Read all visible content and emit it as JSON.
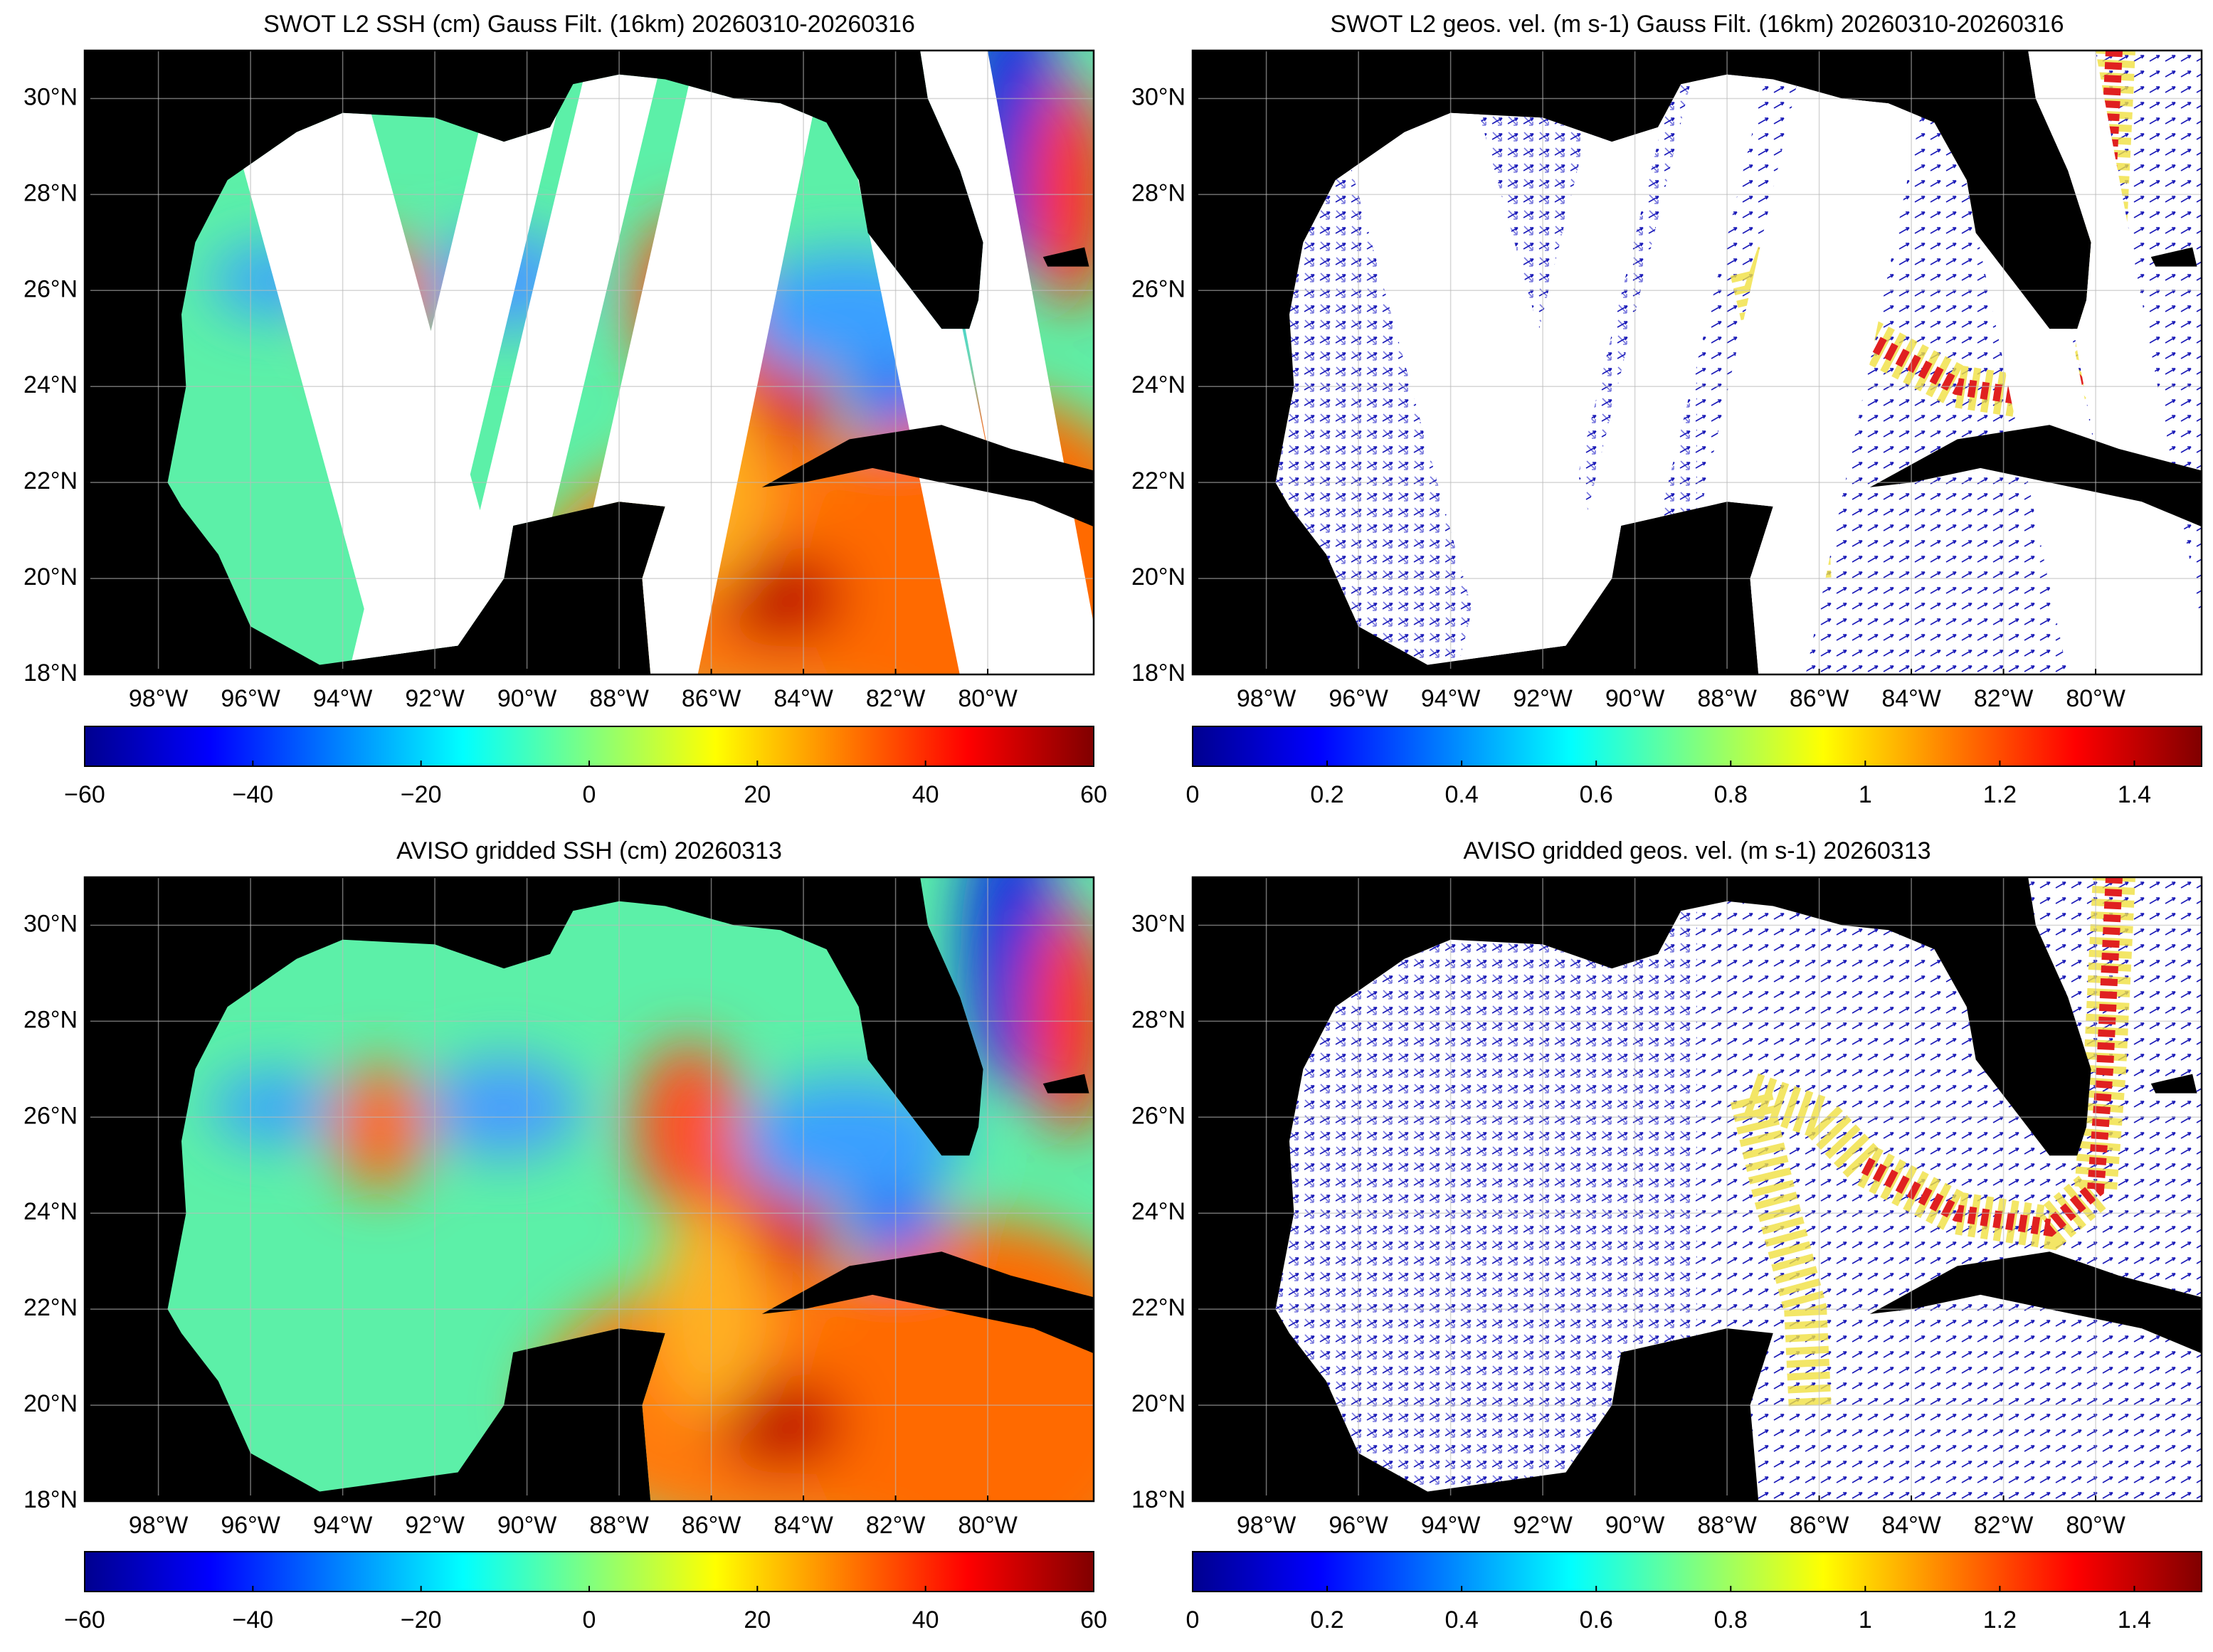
{
  "map_axes": {
    "xlim": [
      -99.6,
      -77.7
    ],
    "ylim": [
      18,
      31
    ],
    "xticks": [
      {
        "value": -98,
        "label": "98°W"
      },
      {
        "value": -96,
        "label": "96°W"
      },
      {
        "value": -94,
        "label": "94°W"
      },
      {
        "value": -92,
        "label": "92°W"
      },
      {
        "value": -90,
        "label": "90°W"
      },
      {
        "value": -88,
        "label": "88°W"
      },
      {
        "value": -86,
        "label": "86°W"
      },
      {
        "value": -84,
        "label": "84°W"
      },
      {
        "value": -82,
        "label": "82°W"
      },
      {
        "value": -80,
        "label": "80°W"
      }
    ],
    "yticks": [
      {
        "value": 18,
        "label": "18°N"
      },
      {
        "value": 20,
        "label": "20°N"
      },
      {
        "value": 22,
        "label": "22°N"
      },
      {
        "value": 24,
        "label": "24°N"
      },
      {
        "value": 26,
        "label": "26°N"
      },
      {
        "value": 28,
        "label": "28°N"
      },
      {
        "value": 30,
        "label": "30°N"
      }
    ]
  },
  "panels": [
    {
      "title": "SWOT L2 SSH (cm) Gauss Filt. (16km) 20260310-20260316",
      "colorbar": {
        "lim": [
          -60,
          60
        ],
        "ticks": [
          {
            "value": -60,
            "label": "−60"
          },
          {
            "value": -40,
            "label": "−40"
          },
          {
            "value": -20,
            "label": "−20"
          },
          0,
          20,
          40,
          60
        ]
      }
    },
    {
      "title": "SWOT L2 geos. vel. (m s-1) Gauss Filt. (16km) 20260310-20260316",
      "colorbar": {
        "lim": [
          0,
          1.5
        ],
        "ticks": [
          0,
          0.2,
          0.4,
          0.6,
          0.8,
          1,
          1.2,
          1.4
        ]
      }
    },
    {
      "title": "AVISO gridded SSH (cm) 20260313",
      "colorbar": {
        "lim": [
          -60,
          60
        ],
        "ticks": [
          {
            "value": -60,
            "label": "−60"
          },
          {
            "value": -40,
            "label": "−40"
          },
          {
            "value": -20,
            "label": "−20"
          },
          0,
          20,
          40,
          60
        ]
      }
    },
    {
      "title": "AVISO gridded geos. vel. (m s-1)  20260313",
      "colorbar": {
        "lim": [
          0,
          1.5
        ],
        "ticks": [
          0,
          0.2,
          0.4,
          0.6,
          0.8,
          1,
          1.2,
          1.4
        ]
      }
    }
  ]
}
